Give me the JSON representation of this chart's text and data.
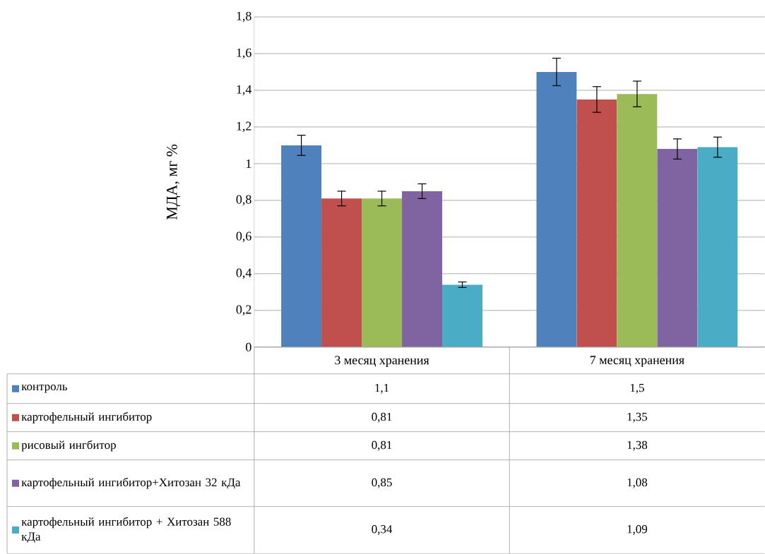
{
  "chart_data": {
    "type": "bar",
    "ylabel": "МДА, мг %",
    "categories": [
      "3 месяц хранения",
      "7 месяц хранения"
    ],
    "series": [
      {
        "name": "контроль",
        "color": "#4f81bd",
        "values": [
          1.1,
          1.5
        ],
        "errors": [
          0.055,
          0.075
        ],
        "value_labels": [
          "1,1",
          "1,5"
        ]
      },
      {
        "name": "картофельный ингибитор",
        "color": "#c0504d",
        "values": [
          0.81,
          1.35
        ],
        "errors": [
          0.04,
          0.07
        ],
        "value_labels": [
          "0,81",
          "1,35"
        ]
      },
      {
        "name": "рисовый ингбитор",
        "color": "#9bbb59",
        "values": [
          0.81,
          1.38
        ],
        "errors": [
          0.04,
          0.07
        ],
        "value_labels": [
          "0,81",
          "1,38"
        ]
      },
      {
        "name": "картофельный ингибитор+Хитозан 32 кДа",
        "color": "#8064a2",
        "values": [
          0.85,
          1.08
        ],
        "errors": [
          0.04,
          0.055
        ],
        "value_labels": [
          "0,85",
          "1,08"
        ]
      },
      {
        "name": "картофельный ингибитор + Хитозан 588 кДа",
        "color": "#4bacc6",
        "values": [
          0.34,
          1.09
        ],
        "errors": [
          0.015,
          0.055
        ],
        "value_labels": [
          "0,34",
          "1,09"
        ]
      }
    ],
    "ylim": [
      0,
      1.8
    ],
    "yticks": [
      0,
      {
        "value": 0.2,
        "label": "0,2"
      },
      {
        "value": 0.4,
        "label": "0,4"
      },
      {
        "value": 0.6,
        "label": "0,6"
      },
      {
        "value": 0.8,
        "label": "0,8"
      },
      1,
      {
        "value": 1.2,
        "label": "1,2"
      },
      {
        "value": 1.4,
        "label": "1,4"
      },
      {
        "value": 1.6,
        "label": "1,6"
      },
      {
        "value": 1.8,
        "label": "1,8"
      }
    ],
    "grid": "y",
    "legend": "bottom"
  }
}
